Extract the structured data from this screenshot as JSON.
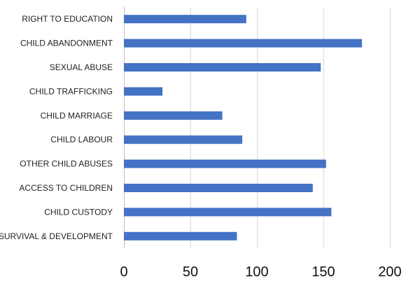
{
  "chart_data": {
    "type": "bar",
    "orientation": "horizontal",
    "categories": [
      "RIGHT TO EDUCATION",
      "CHILD ABANDONMENT",
      "SEXUAL ABUSE",
      "CHILD TRAFFICKING",
      "CHILD MARRIAGE",
      "CHILD LABOUR",
      "OTHER CHILD ABUSES",
      "ACCESS TO CHILDREN",
      "CHILD CUSTODY",
      "SURVIVAL & DEVELOPMENT"
    ],
    "values": [
      92,
      179,
      148,
      29,
      74,
      89,
      152,
      142,
      156,
      85
    ],
    "xlim": [
      0,
      200
    ],
    "ticks": [
      0,
      50,
      100,
      150,
      200
    ],
    "bar_color": "#4472c4",
    "grid": true,
    "legend": "none"
  }
}
